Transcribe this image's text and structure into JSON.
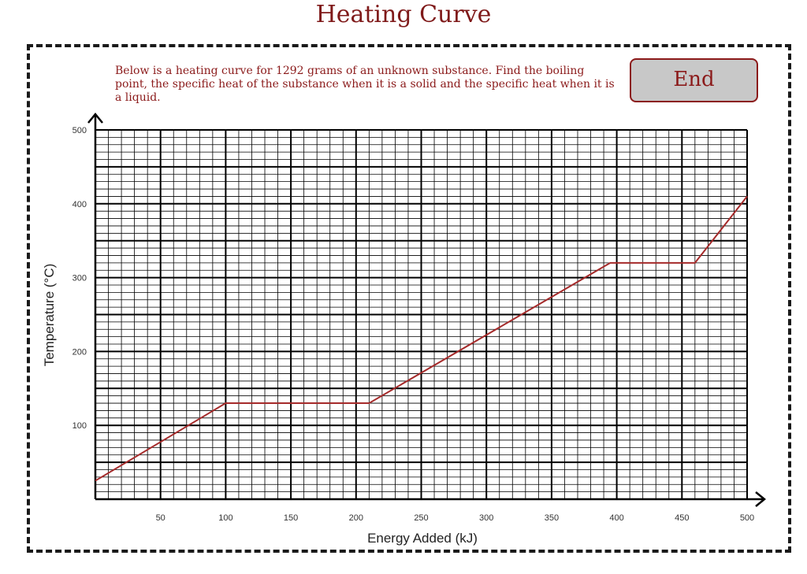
{
  "page": {
    "title": "Heating Curve",
    "instructions": "Below is a heating curve for 1292 grams of an unknown substance. Find the boiling point, the specific heat of the substance when it is a solid and the specific heat when it is a liquid.",
    "end_button_label": "End"
  },
  "colors": {
    "accent": "#8b1a1a",
    "button_bg": "#c8c8c8",
    "curve": "#a52a2a",
    "grid": "#000000"
  },
  "chart_data": {
    "type": "line",
    "title": "",
    "xlabel": "Energy Added (kJ)",
    "ylabel": "Temperature (°C)",
    "xlim": [
      0,
      500
    ],
    "ylim": [
      0,
      500
    ],
    "x_ticks": [
      50,
      100,
      150,
      200,
      250,
      300,
      350,
      400,
      450,
      500
    ],
    "y_ticks": [
      100,
      200,
      300,
      400,
      500
    ],
    "grid": true,
    "grid_minor_x": 10,
    "grid_minor_y": 10,
    "series": [
      {
        "x": [
          0,
          100,
          210,
          395,
          460,
          500
        ],
        "y": [
          25,
          130,
          130,
          320,
          320,
          410
        ]
      }
    ]
  }
}
